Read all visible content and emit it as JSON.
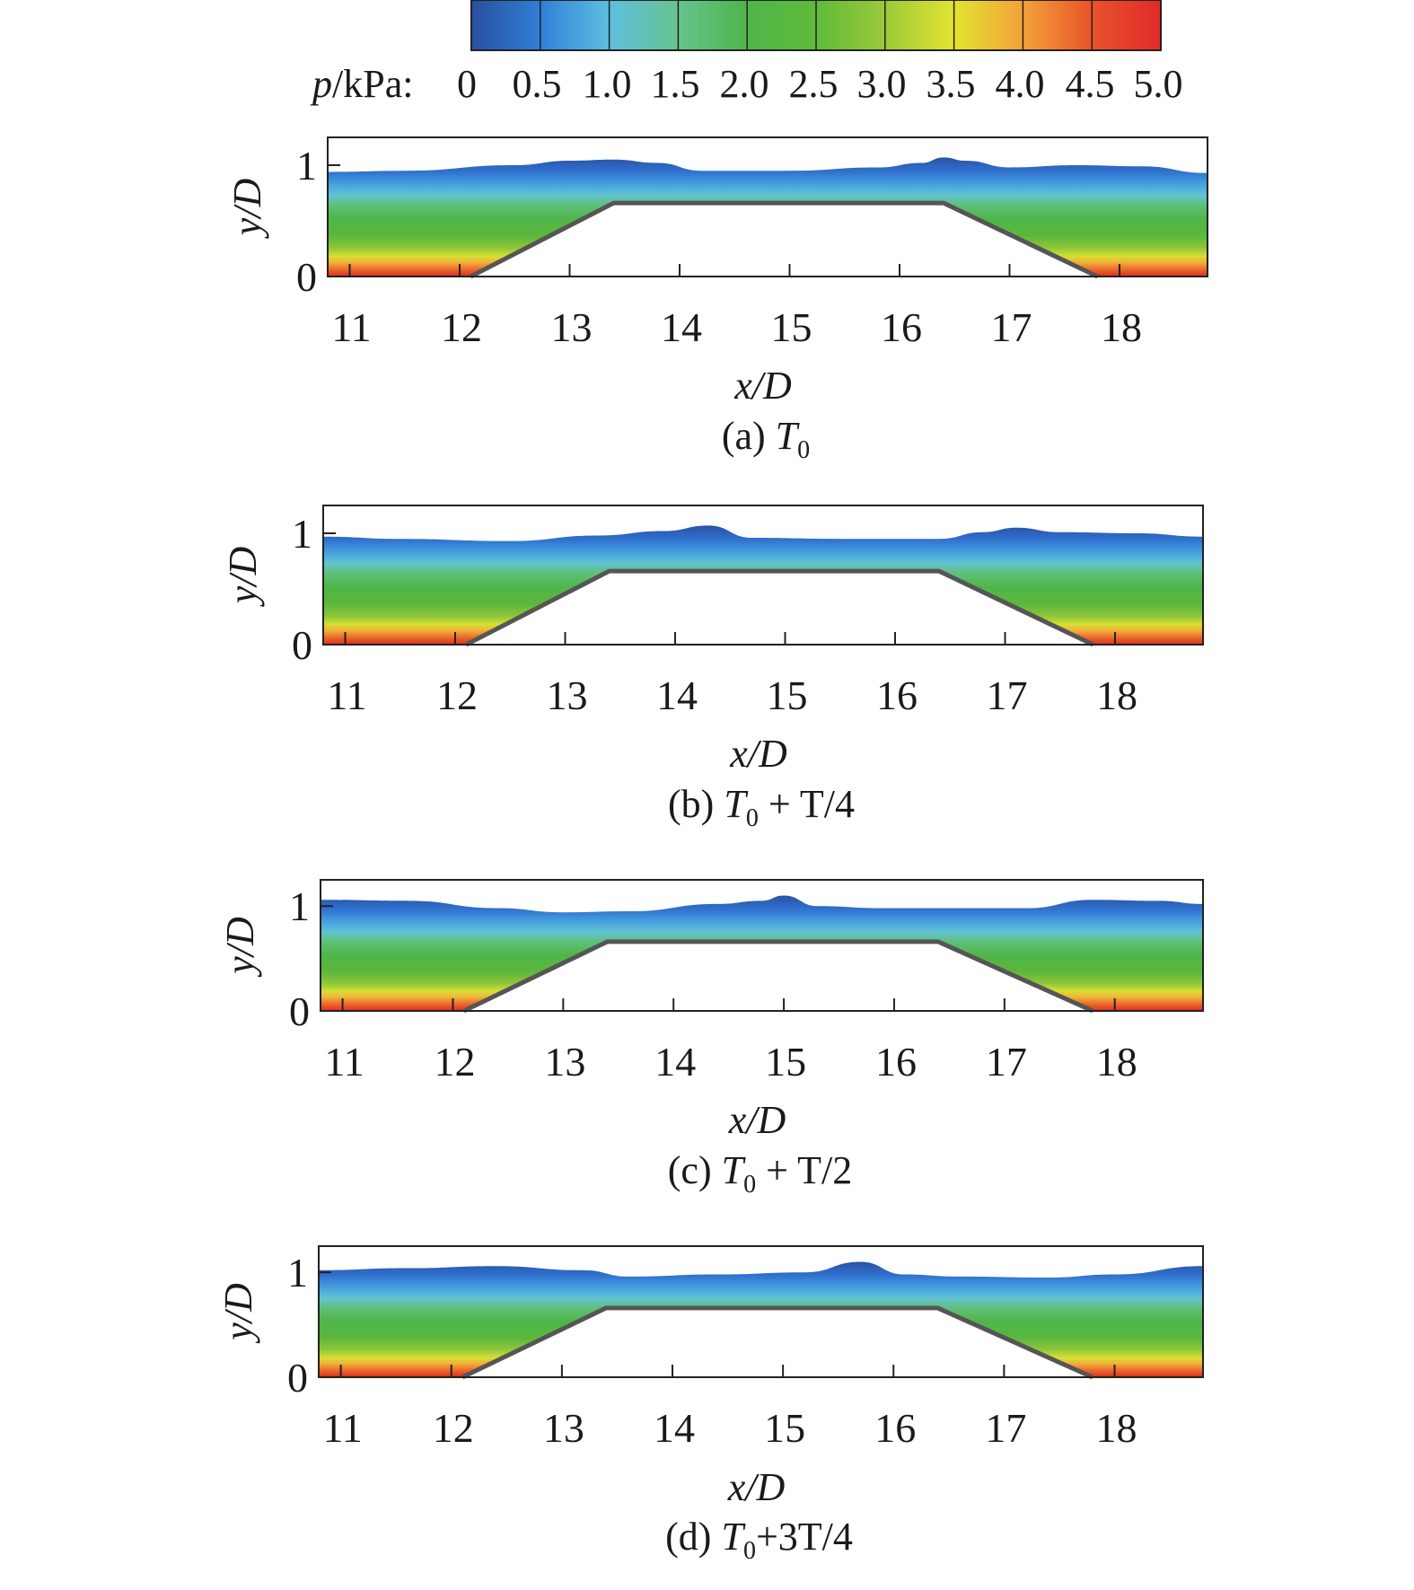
{
  "colorbar": {
    "label_var": "p",
    "label_unit": "/kPa:",
    "ticks": [
      "0",
      "0.5",
      "1.0",
      "1.5",
      "2.0",
      "2.5",
      "3.0",
      "3.5",
      "4.0",
      "4.5",
      "5.0"
    ],
    "colors": [
      "#2a4f9e",
      "#2f7fd6",
      "#5fbfe0",
      "#66c38e",
      "#4fb54a",
      "#5fba3a",
      "#9cc93a",
      "#e3e330",
      "#f3a23a",
      "#e8532a",
      "#e02a2a"
    ]
  },
  "chart_data": [
    {
      "type": "heatmap",
      "panel": "a",
      "caption_prefix": "(a) ",
      "caption_main": "T",
      "caption_sub": "0",
      "caption_suffix": "",
      "xlabel_var": "x",
      "xlabel_unit": "/D",
      "ylabel_var": "y",
      "ylabel_unit": "/D",
      "x_ticks": [
        11,
        12,
        13,
        14,
        15,
        16,
        17,
        18
      ],
      "y_ticks": [
        0,
        1
      ],
      "xlim": [
        10.8,
        18.8
      ],
      "ylim": [
        0,
        1.25
      ],
      "colorbar_range_kPa": [
        0,
        5.0
      ],
      "surface_profile": {
        "x": [
          10.8,
          11.5,
          12.5,
          13.0,
          13.4,
          13.8,
          14.2,
          15.0,
          15.8,
          16.2,
          16.4,
          16.6,
          17.0,
          17.6,
          18.2,
          18.8
        ],
        "y": [
          0.94,
          0.95,
          1.0,
          1.04,
          1.05,
          1.02,
          0.95,
          0.95,
          0.98,
          1.02,
          1.07,
          1.04,
          0.98,
          1.0,
          0.99,
          0.93
        ]
      },
      "obstacle_profile": {
        "x": [
          12.1,
          13.4,
          16.4,
          17.8
        ],
        "y": [
          0,
          0.66,
          0.66,
          0
        ]
      }
    },
    {
      "type": "heatmap",
      "panel": "b",
      "caption_prefix": "(b) ",
      "caption_main": "T",
      "caption_sub": "0",
      "caption_suffix": " + T/4",
      "xlabel_var": "x",
      "xlabel_unit": "/D",
      "ylabel_var": "y",
      "ylabel_unit": "/D",
      "x_ticks": [
        11,
        12,
        13,
        14,
        15,
        16,
        17,
        18
      ],
      "y_ticks": [
        0,
        1
      ],
      "xlim": [
        10.8,
        18.8
      ],
      "ylim": [
        0,
        1.25
      ],
      "colorbar_range_kPa": [
        0,
        5.0
      ],
      "surface_profile": {
        "x": [
          10.8,
          11.5,
          12.5,
          13.3,
          13.9,
          14.3,
          14.7,
          15.5,
          16.4,
          16.8,
          17.1,
          17.5,
          18.2,
          18.8
        ],
        "y": [
          0.97,
          0.95,
          0.93,
          0.98,
          1.02,
          1.07,
          0.96,
          0.95,
          0.95,
          1.01,
          1.05,
          1.01,
          1.0,
          0.97
        ]
      },
      "obstacle_profile": {
        "x": [
          12.1,
          13.4,
          16.4,
          17.8
        ],
        "y": [
          0,
          0.66,
          0.66,
          0
        ]
      }
    },
    {
      "type": "heatmap",
      "panel": "c",
      "caption_prefix": "(c) ",
      "caption_main": "T",
      "caption_sub": "0",
      "caption_suffix": " + T/2",
      "xlabel_var": "x",
      "xlabel_unit": "/D",
      "ylabel_var": "y",
      "ylabel_unit": "/D",
      "x_ticks": [
        11,
        12,
        13,
        14,
        15,
        16,
        17,
        18
      ],
      "y_ticks": [
        0,
        1
      ],
      "xlim": [
        10.8,
        18.8
      ],
      "ylim": [
        0,
        1.25
      ],
      "colorbar_range_kPa": [
        0,
        5.0
      ],
      "surface_profile": {
        "x": [
          10.8,
          11.6,
          12.4,
          13.0,
          13.6,
          14.4,
          14.8,
          15.0,
          15.3,
          15.9,
          16.6,
          17.2,
          17.8,
          18.4,
          18.8
        ],
        "y": [
          1.06,
          1.05,
          0.98,
          0.94,
          0.95,
          1.02,
          1.05,
          1.1,
          1.0,
          0.98,
          0.98,
          0.98,
          1.06,
          1.05,
          1.02
        ]
      },
      "obstacle_profile": {
        "x": [
          12.1,
          13.4,
          16.4,
          17.8
        ],
        "y": [
          0,
          0.66,
          0.66,
          0
        ]
      }
    },
    {
      "type": "heatmap",
      "panel": "d",
      "caption_prefix": "(d) ",
      "caption_main": "T",
      "caption_sub": "0",
      "caption_suffix": "+3T/4",
      "xlabel_var": "x",
      "xlabel_unit": "/D",
      "ylabel_var": "y",
      "ylabel_unit": "/D",
      "x_ticks": [
        11,
        12,
        13,
        14,
        15,
        16,
        17,
        18
      ],
      "y_ticks": [
        0,
        1
      ],
      "xlim": [
        10.8,
        18.8
      ],
      "ylim": [
        0,
        1.25
      ],
      "colorbar_range_kPa": [
        0,
        5.0
      ],
      "surface_profile": {
        "x": [
          10.8,
          11.6,
          12.4,
          13.2,
          13.6,
          14.4,
          15.2,
          15.7,
          16.1,
          16.6,
          17.4,
          18.0,
          18.8
        ],
        "y": [
          1.02,
          1.04,
          1.06,
          1.02,
          0.96,
          0.98,
          1.0,
          1.1,
          0.98,
          0.96,
          0.95,
          0.98,
          1.06
        ]
      },
      "obstacle_profile": {
        "x": [
          12.1,
          13.4,
          16.4,
          17.8
        ],
        "y": [
          0,
          0.66,
          0.66,
          0
        ]
      }
    }
  ]
}
